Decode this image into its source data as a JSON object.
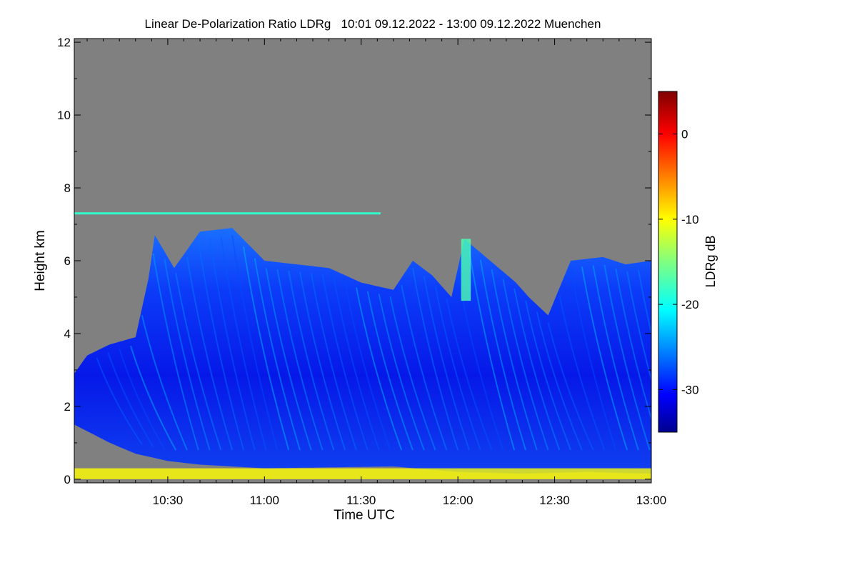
{
  "chart_data": {
    "type": "heatmap",
    "title": "Linear De-Polarization Ratio LDRg   10:01 09.12.2022 - 13:00 09.12.2022 Muenchen",
    "xlabel": "Time UTC",
    "ylabel": "Height km",
    "x_range_minutes_utc": [
      601,
      780
    ],
    "y_range_km": [
      -0.1,
      12.1
    ],
    "x_ticks": [
      {
        "minute": 630,
        "label": "10:30"
      },
      {
        "minute": 660,
        "label": "11:00"
      },
      {
        "minute": 690,
        "label": "11:30"
      },
      {
        "minute": 720,
        "label": "12:00"
      },
      {
        "minute": 750,
        "label": "12:30"
      },
      {
        "minute": 780,
        "label": "13:00"
      }
    ],
    "y_ticks": [
      {
        "value": 0,
        "label": "0"
      },
      {
        "value": 2,
        "label": "2"
      },
      {
        "value": 4,
        "label": "4"
      },
      {
        "value": 6,
        "label": "6"
      },
      {
        "value": 8,
        "label": "8"
      },
      {
        "value": 10,
        "label": "10"
      },
      {
        "value": 12,
        "label": "12"
      }
    ],
    "no_data_color": "#808080",
    "colorbar": {
      "label": "LDRg dB",
      "range_db": [
        -35,
        5
      ],
      "colormap": "jet",
      "colormap_stops": [
        "#00008f",
        "#0000ff",
        "#0080ff",
        "#00ffff",
        "#80ff80",
        "#ffff00",
        "#ff8000",
        "#ff0000",
        "#800000"
      ],
      "ticks": [
        {
          "value": 0,
          "label": "0"
        },
        {
          "value": -10,
          "label": "-10"
        },
        {
          "value": -20,
          "label": "-20"
        },
        {
          "value": -30,
          "label": "-30"
        }
      ]
    },
    "cloud_top_km": [
      {
        "minute": 601,
        "km": 2.9
      },
      {
        "minute": 605,
        "km": 3.4
      },
      {
        "minute": 612,
        "km": 3.7
      },
      {
        "minute": 620,
        "km": 3.9
      },
      {
        "minute": 624,
        "km": 5.5
      },
      {
        "minute": 626,
        "km": 6.7
      },
      {
        "minute": 632,
        "km": 5.8
      },
      {
        "minute": 640,
        "km": 6.8
      },
      {
        "minute": 650,
        "km": 6.9
      },
      {
        "minute": 660,
        "km": 6.0
      },
      {
        "minute": 670,
        "km": 5.9
      },
      {
        "minute": 680,
        "km": 5.8
      },
      {
        "minute": 690,
        "km": 5.4
      },
      {
        "minute": 700,
        "km": 5.2
      },
      {
        "minute": 706,
        "km": 6.0
      },
      {
        "minute": 712,
        "km": 5.6
      },
      {
        "minute": 718,
        "km": 5.0
      },
      {
        "minute": 722,
        "km": 6.6
      },
      {
        "minute": 730,
        "km": 6.0
      },
      {
        "minute": 738,
        "km": 5.4
      },
      {
        "minute": 742,
        "km": 5.0
      },
      {
        "minute": 748,
        "km": 4.5
      },
      {
        "minute": 755,
        "km": 6.0
      },
      {
        "minute": 765,
        "km": 6.1
      },
      {
        "minute": 772,
        "km": 5.9
      },
      {
        "minute": 780,
        "km": 6.0
      }
    ],
    "cloud_base_km": [
      {
        "minute": 601,
        "km": 1.5
      },
      {
        "minute": 612,
        "km": 1.0
      },
      {
        "minute": 620,
        "km": 0.7
      },
      {
        "minute": 630,
        "km": 0.5
      },
      {
        "minute": 640,
        "km": 0.4
      },
      {
        "minute": 660,
        "km": 0.3
      },
      {
        "minute": 700,
        "km": 0.35
      },
      {
        "minute": 720,
        "km": 0.2
      },
      {
        "minute": 740,
        "km": 0.15
      },
      {
        "minute": 760,
        "km": 0.2
      },
      {
        "minute": 780,
        "km": 0.15
      }
    ],
    "features": [
      {
        "name": "persistent cirrus streak",
        "minute_range": [
          601,
          696
        ],
        "km": 7.3,
        "ldr_db": -18
      },
      {
        "name": "enhanced-depolarization ice shaft",
        "minute_range": [
          721,
          724
        ],
        "km_range": [
          4.9,
          6.6
        ],
        "ldr_db": -17
      },
      {
        "name": "surface clutter layer",
        "minute_range": [
          601,
          780
        ],
        "km_range": [
          0.0,
          0.3
        ],
        "ldr_db": -10
      }
    ]
  }
}
